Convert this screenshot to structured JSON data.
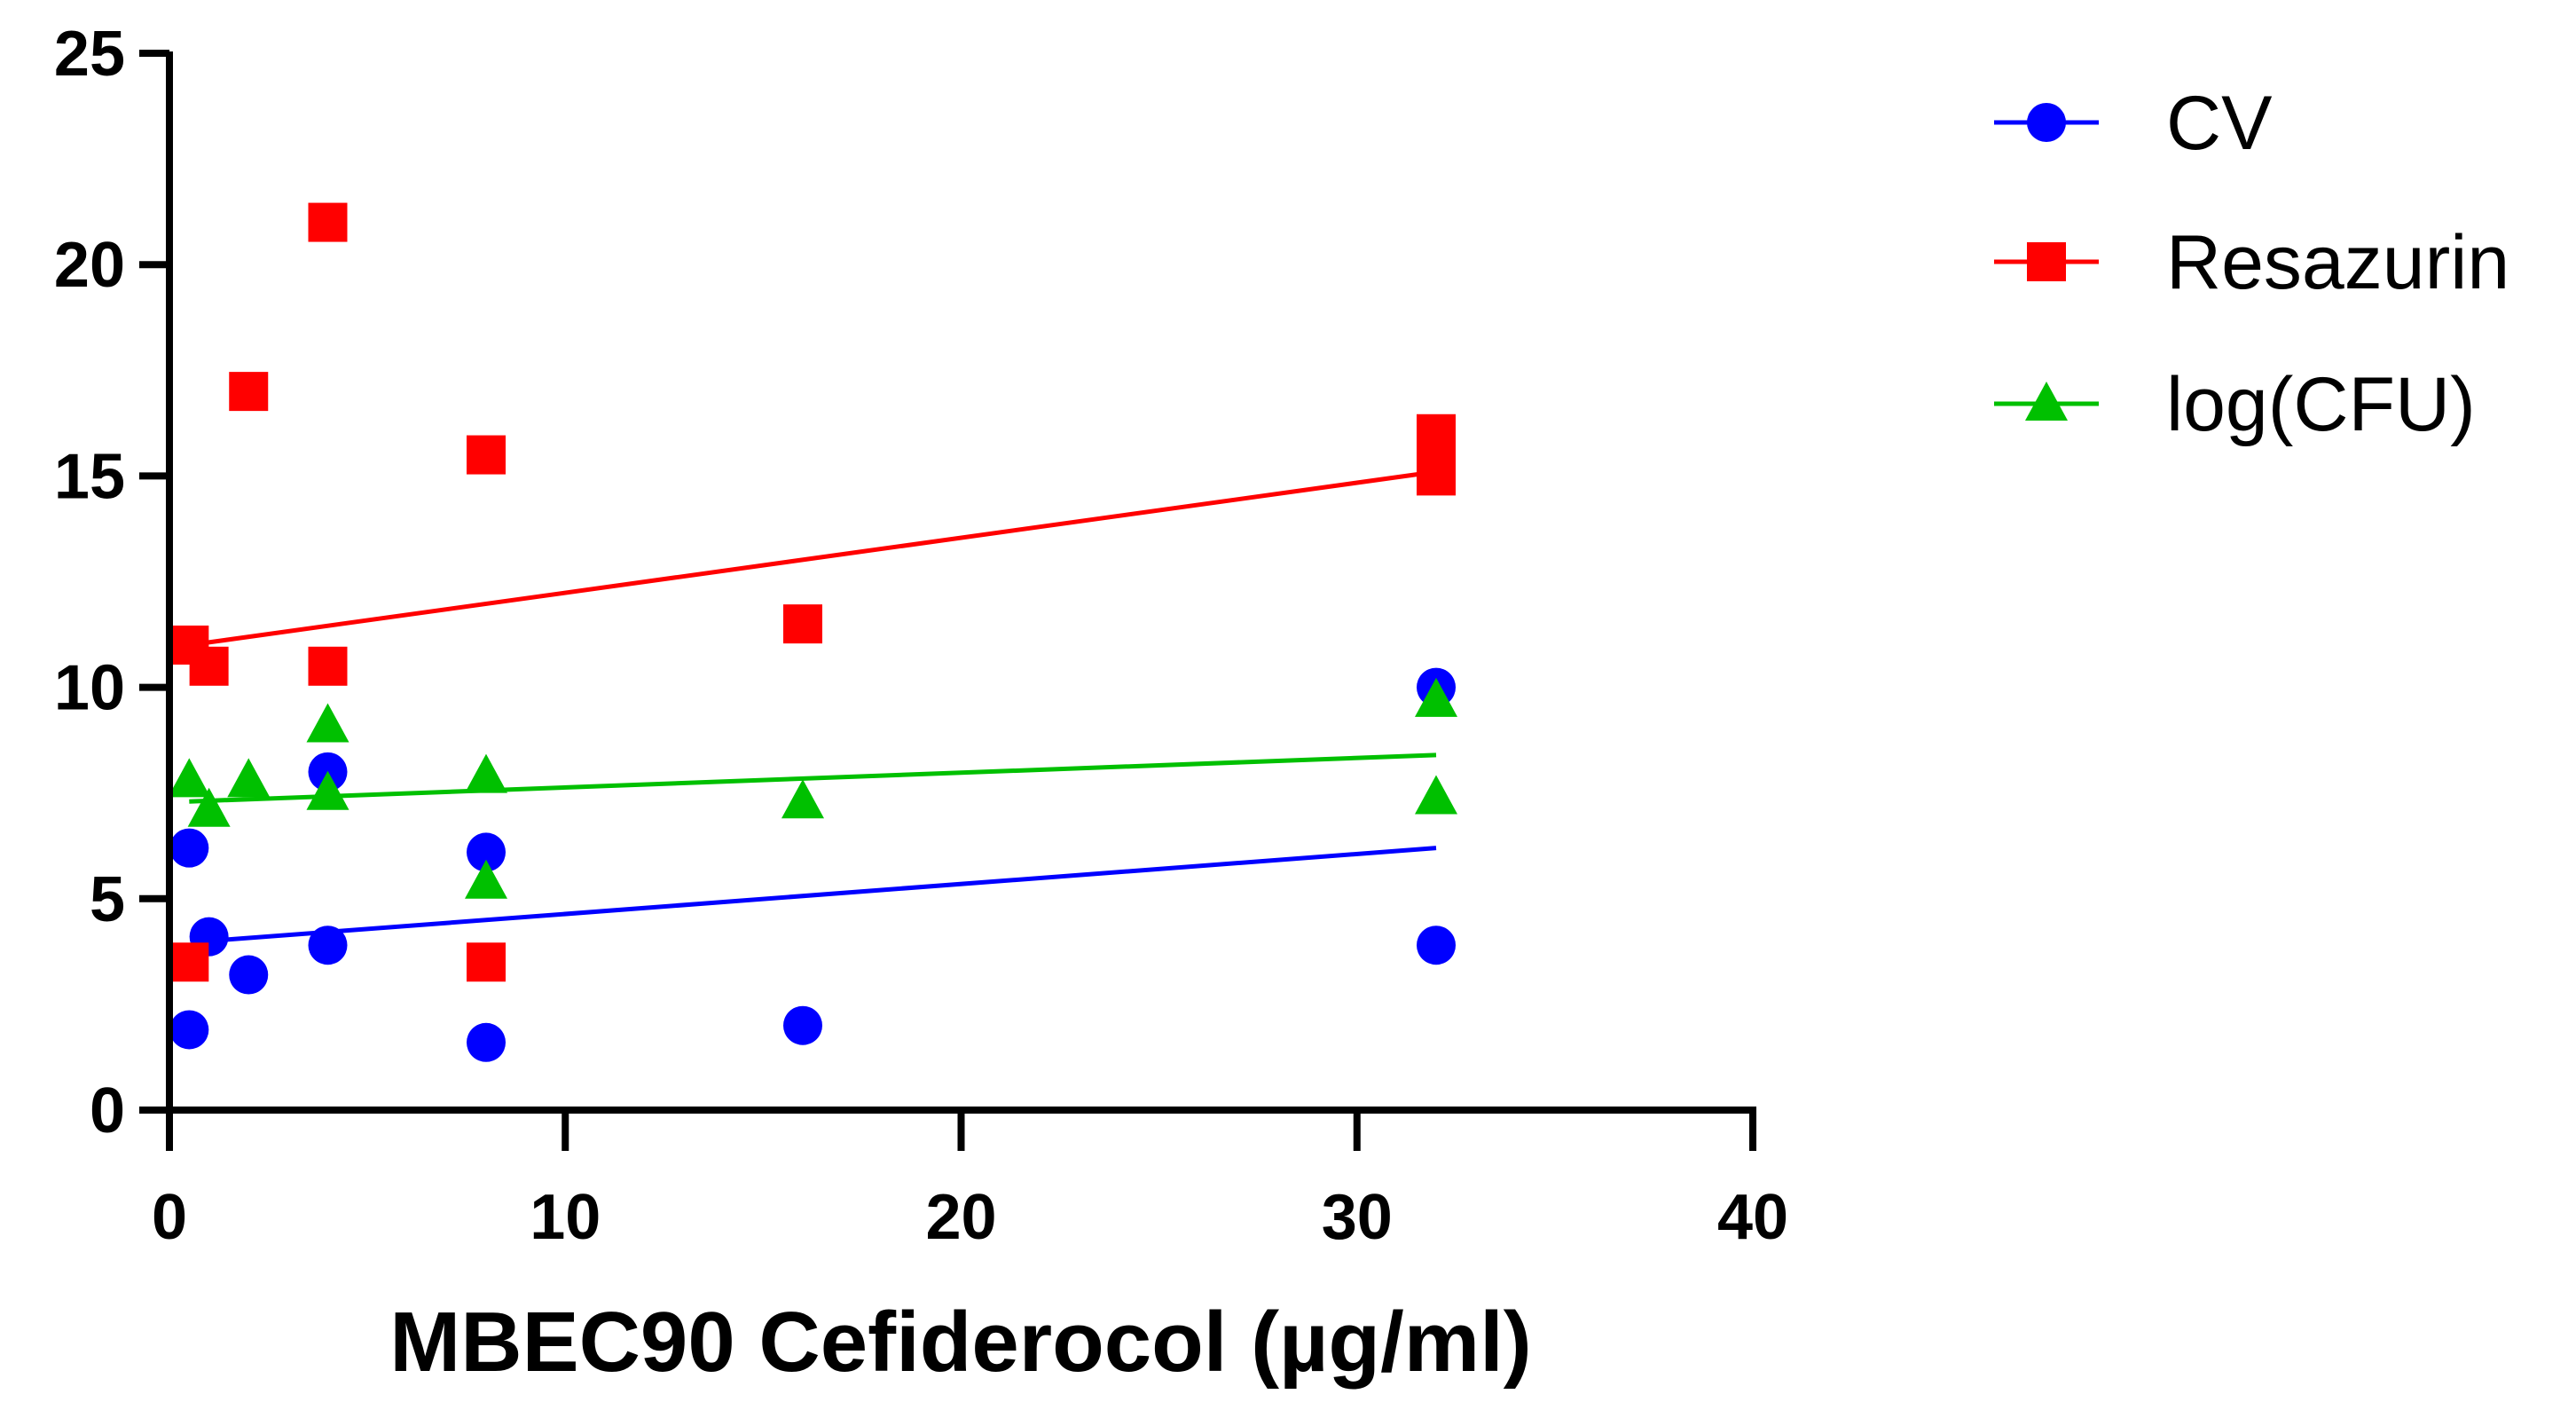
{
  "chart_data": {
    "type": "scatter",
    "title": "",
    "xlabel": "MBEC90 Cefiderocol (µg/ml)",
    "ylabel": "",
    "xlim": [
      0,
      40
    ],
    "ylim": [
      0,
      25
    ],
    "x_ticks": [
      0,
      10,
      20,
      30,
      40
    ],
    "y_ticks": [
      0,
      5,
      10,
      15,
      20,
      25
    ],
    "grid": false,
    "legend_position": "right",
    "series": [
      {
        "name": "CV",
        "color": "#0000ff",
        "marker": "circle",
        "points": [
          {
            "x": 0.5,
            "y": 6.2
          },
          {
            "x": 0.5,
            "y": 1.9
          },
          {
            "x": 1,
            "y": 4.1
          },
          {
            "x": 2,
            "y": 3.2
          },
          {
            "x": 4,
            "y": 8.0
          },
          {
            "x": 4,
            "y": 3.9
          },
          {
            "x": 8,
            "y": 6.1
          },
          {
            "x": 8,
            "y": 1.6
          },
          {
            "x": 16,
            "y": 2.0
          },
          {
            "x": 32,
            "y": 10.0
          },
          {
            "x": 32,
            "y": 3.9
          }
        ],
        "fit_line": {
          "x": [
            1,
            32
          ],
          "y": [
            4.0,
            6.2
          ]
        }
      },
      {
        "name": "Resazurin",
        "color": "#ff0000",
        "marker": "square",
        "points": [
          {
            "x": 0.5,
            "y": 11.0
          },
          {
            "x": 0.5,
            "y": 3.5
          },
          {
            "x": 1,
            "y": 10.5
          },
          {
            "x": 2,
            "y": 17.0
          },
          {
            "x": 4,
            "y": 21.0
          },
          {
            "x": 4,
            "y": 10.5
          },
          {
            "x": 8,
            "y": 15.5
          },
          {
            "x": 8,
            "y": 3.5
          },
          {
            "x": 16,
            "y": 11.5
          },
          {
            "x": 32,
            "y": 16.0
          },
          {
            "x": 32,
            "y": 15.5
          },
          {
            "x": 32,
            "y": 15.0
          }
        ],
        "fit_line": {
          "x": [
            0.5,
            32
          ],
          "y": [
            11.0,
            15.1
          ]
        }
      },
      {
        "name": "log(CFU)",
        "color": "#00c000",
        "marker": "triangle",
        "points": [
          {
            "x": 0.5,
            "y": 7.8
          },
          {
            "x": 1,
            "y": 7.1
          },
          {
            "x": 2,
            "y": 7.8
          },
          {
            "x": 4,
            "y": 9.1
          },
          {
            "x": 4,
            "y": 7.5
          },
          {
            "x": 8,
            "y": 7.9
          },
          {
            "x": 8,
            "y": 5.4
          },
          {
            "x": 16,
            "y": 7.3
          },
          {
            "x": 32,
            "y": 9.7
          },
          {
            "x": 32,
            "y": 7.4
          }
        ],
        "fit_line": {
          "x": [
            0.5,
            32
          ],
          "y": [
            7.3,
            8.4
          ]
        }
      }
    ]
  }
}
